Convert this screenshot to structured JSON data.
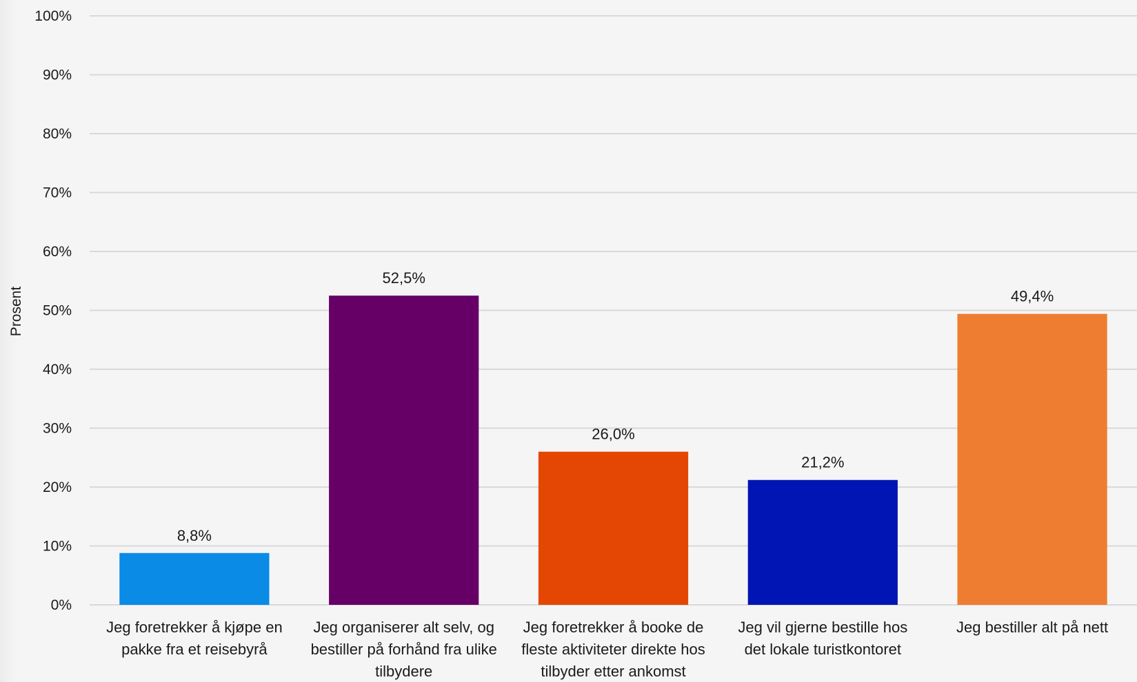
{
  "chart_data": {
    "type": "bar",
    "title": "",
    "xlabel": "",
    "ylabel": "Prosent",
    "ylim": [
      0,
      100
    ],
    "yticks": [
      "0%",
      "10%",
      "20%",
      "30%",
      "40%",
      "50%",
      "60%",
      "70%",
      "80%",
      "90%",
      "100%"
    ],
    "grid": true,
    "legend": "none",
    "categories": [
      [
        "Jeg foretrekker å kjøpe en",
        "pakke fra et reisebyrå"
      ],
      [
        "Jeg organiserer alt selv, og",
        "bestiller på forhånd fra ulike",
        "tilbydere"
      ],
      [
        "Jeg foretrekker å booke de",
        "fleste aktiviteter direkte hos",
        "tilbyder etter ankomst"
      ],
      [
        "Jeg vil gjerne bestille hos",
        "det lokale turistkontoret"
      ],
      [
        "Jeg bestiller alt på nett"
      ]
    ],
    "values": [
      8.8,
      52.5,
      26.0,
      21.2,
      49.4
    ],
    "data_labels": [
      "8,8%",
      "52,5%",
      "26,0%",
      "21,2%",
      "49,4%"
    ],
    "colors": [
      "#0a8be6",
      "#660066",
      "#e34703",
      "#0015b3",
      "#ee7d31"
    ],
    "grid_color": "#d9d9d9"
  }
}
